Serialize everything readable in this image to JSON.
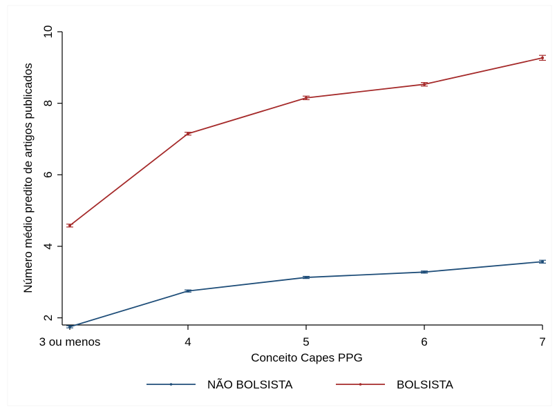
{
  "chart_data": {
    "type": "line",
    "title": "",
    "xlabel": "Conceito Capes PPG",
    "ylabel": "Número médio predito de artigos publicados",
    "categories": [
      "3 ou menos",
      "4",
      "5",
      "6",
      "7"
    ],
    "ylim": [
      1.8,
      10
    ],
    "yticks": [
      2,
      4,
      6,
      8,
      10
    ],
    "grid": false,
    "legend_position": "bottom",
    "series": [
      {
        "name": "NÃO BOLSISTA",
        "color": "#1f4e79",
        "values": [
          1.75,
          2.75,
          3.13,
          3.28,
          3.57
        ],
        "error": [
          0.03,
          0.03,
          0.03,
          0.03,
          0.04
        ]
      },
      {
        "name": "BOLSISTA",
        "color": "#a52a2a",
        "values": [
          4.58,
          7.15,
          8.15,
          8.53,
          9.27
        ],
        "error": [
          0.04,
          0.04,
          0.05,
          0.05,
          0.07
        ]
      }
    ]
  }
}
